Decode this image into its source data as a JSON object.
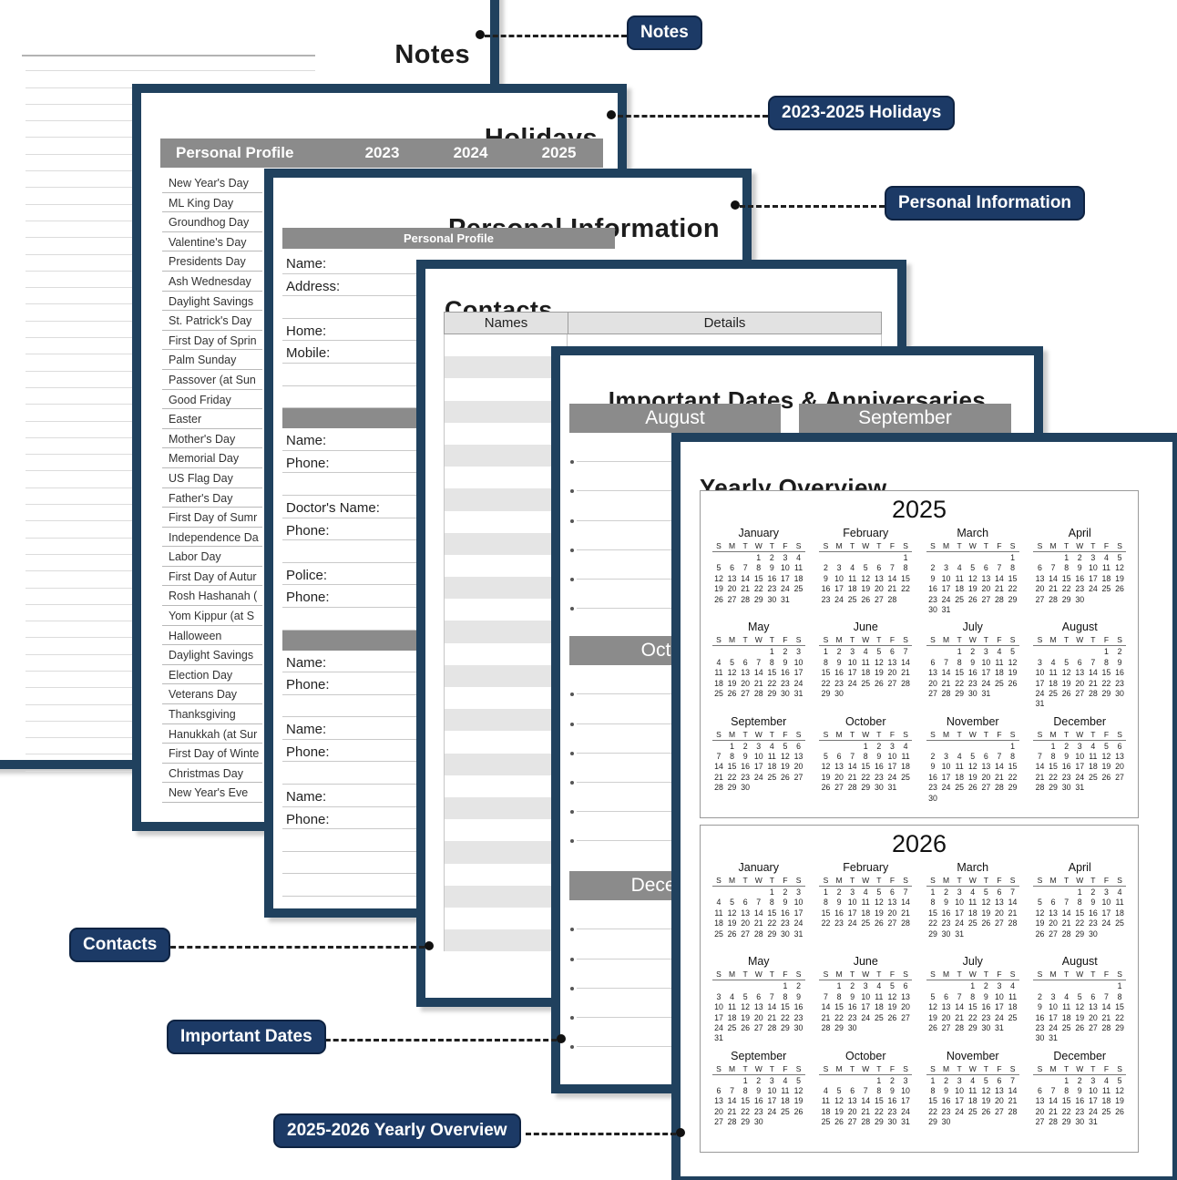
{
  "callouts": {
    "notes": "Notes",
    "holidays": "2023-2025 Holidays",
    "personal": "Personal Information",
    "contacts": "Contacts",
    "dates": "Important Dates",
    "yearly": "2025-2026 Yearly Overview"
  },
  "notes": {
    "title": "Notes",
    "ruled_line_count": 43
  },
  "holidays": {
    "title": "Holidays",
    "header": {
      "label": "Personal Profile",
      "years": [
        "2023",
        "2024",
        "2025"
      ]
    },
    "items": [
      "New Year's Day",
      "ML King Day",
      "Groundhog Day",
      "Valentine's Day",
      "Presidents Day",
      "Ash Wednesday",
      "Daylight Savings",
      "St. Patrick's Day",
      "First Day of Sprin",
      "Palm Sunday",
      "Passover (at Sun",
      "Good Friday",
      "Easter",
      "Mother's Day",
      "Memorial Day",
      "US Flag Day",
      "Father's Day",
      "First Day of Sumr",
      "Independence Da",
      "Labor Day",
      "First Day of Autur",
      "Rosh Hashanah (",
      "Yom Kippur (at S",
      "Halloween",
      "Daylight Savings",
      "Election Day",
      "Veterans Day",
      "Thanksgiving",
      "Hanukkah (at Sur",
      "First Day of Winte",
      "Christmas Day",
      "New Year's Eve"
    ]
  },
  "personal": {
    "title": "Personal Information",
    "section_header": "Personal Profile",
    "rows": [
      {
        "type": "field",
        "label": "Name:"
      },
      {
        "type": "field",
        "label": "Address:"
      },
      {
        "type": "field",
        "label": ""
      },
      {
        "type": "field",
        "label": "Home:"
      },
      {
        "type": "field",
        "label": "Mobile:"
      },
      {
        "type": "field",
        "label": ""
      },
      {
        "type": "field",
        "label": ""
      },
      {
        "type": "bar"
      },
      {
        "type": "field",
        "label": "Name:"
      },
      {
        "type": "field",
        "label": "Phone:"
      },
      {
        "type": "field",
        "label": ""
      },
      {
        "type": "field",
        "label": "Doctor's Name:"
      },
      {
        "type": "field",
        "label": "Phone:"
      },
      {
        "type": "field",
        "label": ""
      },
      {
        "type": "field",
        "label": "Police:"
      },
      {
        "type": "field",
        "label": "Phone:"
      },
      {
        "type": "field",
        "label": ""
      },
      {
        "type": "bar"
      },
      {
        "type": "field",
        "label": "Name:"
      },
      {
        "type": "field",
        "label": "Phone:"
      },
      {
        "type": "field",
        "label": ""
      },
      {
        "type": "field",
        "label": "Name:"
      },
      {
        "type": "field",
        "label": "Phone:"
      },
      {
        "type": "field",
        "label": ""
      },
      {
        "type": "field",
        "label": "Name:"
      },
      {
        "type": "field",
        "label": "Phone:"
      },
      {
        "type": "field",
        "label": ""
      },
      {
        "type": "field",
        "label": ""
      },
      {
        "type": "field",
        "label": ""
      }
    ]
  },
  "contacts": {
    "title": "Contacts",
    "columns": [
      "Names",
      "Details"
    ],
    "empty_row_count": 28
  },
  "important_dates": {
    "title": "Important Dates & Anniversaries",
    "sections": [
      {
        "left": "August",
        "right": "September",
        "rows": 6
      },
      {
        "left": "October",
        "right": "",
        "rows": 6
      },
      {
        "left": "December",
        "right": "",
        "rows": 5
      }
    ]
  },
  "yearly_overview": {
    "title": "Yearly Overview",
    "weekday_header": [
      "S",
      "M",
      "T",
      "W",
      "T",
      "F",
      "S"
    ],
    "years": [
      {
        "year": "2025",
        "months": [
          {
            "name": "January",
            "start": 3,
            "days": 31
          },
          {
            "name": "February",
            "start": 6,
            "days": 28
          },
          {
            "name": "March",
            "start": 6,
            "days": 31
          },
          {
            "name": "April",
            "start": 2,
            "days": 30
          },
          {
            "name": "May",
            "start": 4,
            "days": 31
          },
          {
            "name": "June",
            "start": 0,
            "days": 30
          },
          {
            "name": "July",
            "start": 2,
            "days": 31
          },
          {
            "name": "August",
            "start": 5,
            "days": 31
          },
          {
            "name": "September",
            "start": 1,
            "days": 30
          },
          {
            "name": "October",
            "start": 3,
            "days": 31
          },
          {
            "name": "November",
            "start": 6,
            "days": 30
          },
          {
            "name": "December",
            "start": 1,
            "days": 31
          }
        ]
      },
      {
        "year": "2026",
        "months": [
          {
            "name": "January",
            "start": 4,
            "days": 31
          },
          {
            "name": "February",
            "start": 0,
            "days": 28
          },
          {
            "name": "March",
            "start": 0,
            "days": 31
          },
          {
            "name": "April",
            "start": 3,
            "days": 30
          },
          {
            "name": "May",
            "start": 5,
            "days": 31
          },
          {
            "name": "June",
            "start": 1,
            "days": 30
          },
          {
            "name": "July",
            "start": 3,
            "days": 31
          },
          {
            "name": "August",
            "start": 6,
            "days": 31
          },
          {
            "name": "September",
            "start": 2,
            "days": 30
          },
          {
            "name": "October",
            "start": 4,
            "days": 31
          },
          {
            "name": "November",
            "start": 0,
            "days": 30
          },
          {
            "name": "December",
            "start": 2,
            "days": 31
          }
        ]
      }
    ]
  }
}
